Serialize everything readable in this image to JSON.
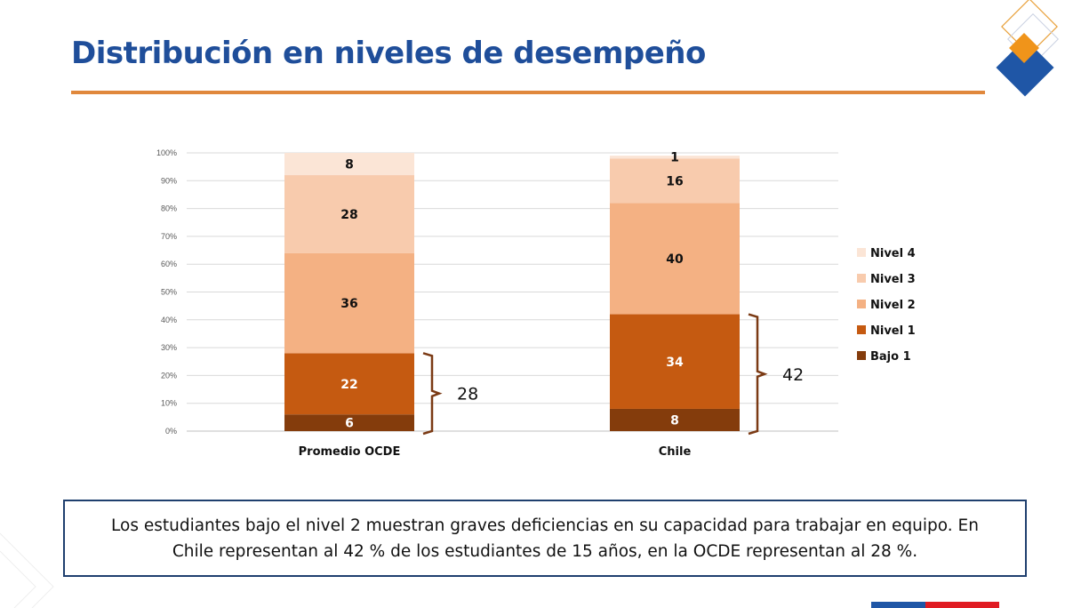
{
  "title": "Distribución en niveles de desempeño",
  "note": "Los estudiantes bajo el nivel 2 muestran graves deficiencias en su capacidad para trabajar en equipo. En Chile representan al 42 % de los estudiantes de 15 años, en la OCDE representan al 28 %.",
  "colors": {
    "brand_blue": "#1f4e9a",
    "accent_orange": "#e0883c",
    "flag_blue": "#1f56a6",
    "flag_red": "#e01b22"
  },
  "chart_data": {
    "type": "bar",
    "stacked": true,
    "title": "",
    "xlabel": "",
    "ylabel": "",
    "ylim": [
      0,
      100
    ],
    "y_ticks": [
      "0%",
      "10%",
      "20%",
      "30%",
      "40%",
      "50%",
      "60%",
      "70%",
      "80%",
      "90%",
      "100%"
    ],
    "grid": true,
    "legend_position": "right",
    "categories": [
      "Promedio OCDE",
      "Chile"
    ],
    "series": [
      {
        "name": "Bajo 1",
        "color": "#843c0c",
        "label_color": "#ffffff",
        "values": [
          6,
          8
        ]
      },
      {
        "name": "Nivel 1",
        "color": "#c55a11",
        "label_color": "#ffffff",
        "values": [
          22,
          34
        ]
      },
      {
        "name": "Nivel 2",
        "color": "#f4b183",
        "label_color": "#111111",
        "values": [
          36,
          40
        ]
      },
      {
        "name": "Nivel 3",
        "color": "#f8cbad",
        "label_color": "#111111",
        "values": [
          28,
          16
        ]
      },
      {
        "name": "Nivel 4",
        "color": "#fbe5d6",
        "label_color": "#111111",
        "values": [
          8,
          1
        ]
      }
    ],
    "annotations": [
      {
        "category": "Promedio OCDE",
        "text": "28",
        "range": [
          0,
          28
        ]
      },
      {
        "category": "Chile",
        "text": "42",
        "range": [
          0,
          42
        ]
      }
    ]
  }
}
